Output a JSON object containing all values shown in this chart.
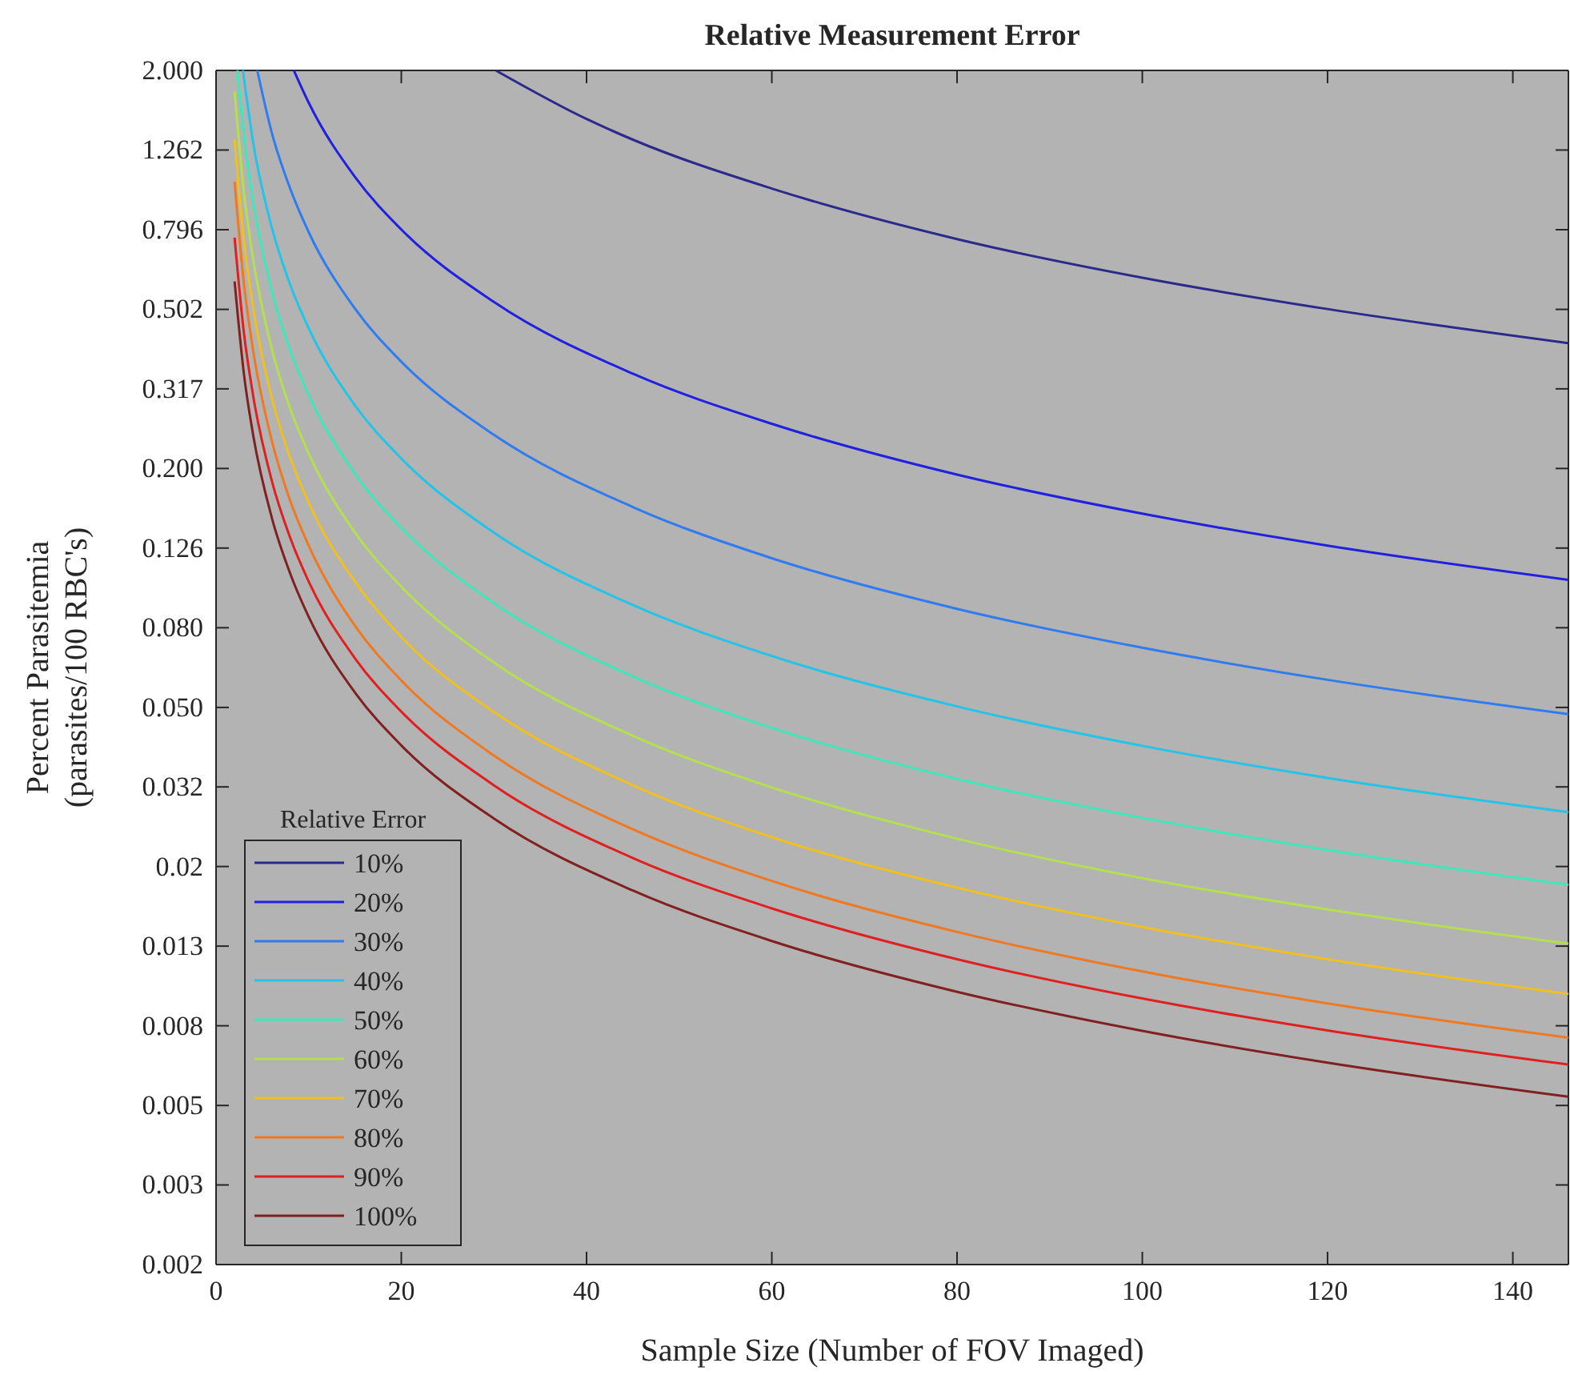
{
  "chart_data": {
    "type": "line",
    "title": "Relative Measurement Error",
    "xlabel": "Sample Size (Number of FOV Imaged)",
    "ylabel": "Percent Parasitemia\n(parasites/100 RBC's)",
    "legend_title": "Relative Error",
    "legend": "bottom left",
    "grid": false,
    "log": "y",
    "marker": "none",
    "line_style": "solid",
    "xlim": [
      0,
      146
    ],
    "xticks": [
      0,
      20,
      40,
      60,
      80,
      100,
      120,
      140
    ],
    "ylim": [
      0.002,
      2
    ],
    "yticks": [
      {
        "value": 0.002,
        "label": "0.002"
      },
      {
        "value": 0.00317,
        "label": "0.003"
      },
      {
        "value": 0.00502,
        "label": "0.005"
      },
      {
        "value": 0.00796,
        "label": "0.008"
      },
      {
        "value": 0.01262,
        "label": "0.013"
      },
      {
        "value": 0.02,
        "label": "0.02"
      },
      {
        "value": 0.0317,
        "label": "0.032"
      },
      {
        "value": 0.0502,
        "label": "0.050"
      },
      {
        "value": 0.0796,
        "label": "0.080"
      },
      {
        "value": 0.1262,
        "label": "0.126"
      },
      {
        "value": 0.2,
        "label": "0.200"
      },
      {
        "value": 0.317,
        "label": "0.317"
      },
      {
        "value": 0.502,
        "label": "0.502"
      },
      {
        "value": 0.796,
        "label": "0.796"
      },
      {
        "value": 1.262,
        "label": "1.262"
      },
      {
        "value": 2,
        "label": "2.000"
      }
    ],
    "series": [
      {
        "name": "10%",
        "color": "#2a2a8c",
        "x": [
          30.2,
          40,
          45,
          60,
          80,
          100,
          120,
          146
        ],
        "values": [
          2.0,
          1.51,
          1.34,
          1.01,
          0.754,
          0.603,
          0.503,
          0.413
        ]
      },
      {
        "name": "20%",
        "color": "#2020e0",
        "x": [
          8.4,
          10,
          15,
          20,
          30,
          45,
          60,
          80,
          100,
          120,
          146
        ],
        "values": [
          2.0,
          1.66,
          1.08,
          0.797,
          0.524,
          0.346,
          0.259,
          0.193,
          0.154,
          0.128,
          0.105
        ]
      },
      {
        "name": "30%",
        "color": "#2f7bf0",
        "x": [
          4.45,
          6,
          8,
          10,
          15,
          20,
          30,
          45,
          60,
          80,
          100,
          120,
          146
        ],
        "values": [
          2.0,
          1.4,
          1.01,
          0.785,
          0.504,
          0.371,
          0.243,
          0.16,
          0.119,
          0.0888,
          0.0709,
          0.0589,
          0.0483
        ]
      },
      {
        "name": "40%",
        "color": "#22c4e8",
        "x": [
          2.9,
          4,
          6,
          8,
          10,
          15,
          20,
          30,
          45,
          60,
          80,
          100,
          120,
          146
        ],
        "values": [
          2.0,
          1.32,
          0.809,
          0.579,
          0.45,
          0.288,
          0.212,
          0.138,
          0.0908,
          0.0676,
          0.0505,
          0.0402,
          0.0334,
          0.0274
        ]
      },
      {
        "name": "50%",
        "color": "#3ee8b8",
        "x": [
          2.3,
          3,
          4,
          6,
          8,
          10,
          15,
          20,
          30,
          45,
          60,
          80,
          100,
          120,
          146
        ],
        "values": [
          2.0,
          1.38,
          0.938,
          0.561,
          0.397,
          0.306,
          0.194,
          0.142,
          0.0918,
          0.0601,
          0.0446,
          0.0332,
          0.0265,
          0.022,
          0.018
        ]
      },
      {
        "name": "60%",
        "color": "#b4e050",
        "x": [
          2,
          3,
          4,
          6,
          8,
          10,
          15,
          20,
          30,
          45,
          60,
          80,
          100,
          120,
          146
        ],
        "values": [
          1.77,
          0.991,
          0.673,
          0.401,
          0.283,
          0.218,
          0.138,
          0.101,
          0.0651,
          0.0426,
          0.0316,
          0.0235,
          0.0187,
          0.0156,
          0.0128
        ]
      },
      {
        "name": "70%",
        "color": "#f0c020",
        "x": [
          2,
          3,
          4,
          6,
          8,
          10,
          15,
          20,
          30,
          45,
          60,
          80,
          100,
          120,
          146
        ],
        "values": [
          1.34,
          0.749,
          0.508,
          0.302,
          0.213,
          0.164,
          0.104,
          0.0755,
          0.0489,
          0.032,
          0.0237,
          0.0177,
          0.0141,
          0.0117,
          0.00957
        ]
      },
      {
        "name": "80%",
        "color": "#f07820",
        "x": [
          2,
          3,
          4,
          6,
          8,
          10,
          15,
          20,
          30,
          45,
          60,
          80,
          100,
          120,
          146
        ],
        "values": [
          1.05,
          0.586,
          0.396,
          0.236,
          0.166,
          0.128,
          0.0805,
          0.0587,
          0.038,
          0.0248,
          0.0184,
          0.0137,
          0.0109,
          0.00906,
          0.00743
        ]
      },
      {
        "name": "90%",
        "color": "#e02020",
        "x": [
          2,
          3,
          4,
          6,
          8,
          10,
          15,
          20,
          30,
          45,
          60,
          80,
          100,
          120,
          146
        ],
        "values": [
          0.76,
          0.44,
          0.305,
          0.187,
          0.134,
          0.104,
          0.0667,
          0.049,
          0.032,
          0.021,
          0.0157,
          0.0117,
          0.00932,
          0.00775,
          0.00636
        ]
      },
      {
        "name": "100%",
        "color": "#802020",
        "x": [
          2,
          3,
          4,
          6,
          8,
          10,
          15,
          20,
          30,
          45,
          60,
          80,
          100,
          120,
          146
        ],
        "values": [
          0.59,
          0.347,
          0.243,
          0.151,
          0.109,
          0.0848,
          0.0547,
          0.0403,
          0.0264,
          0.0174,
          0.013,
          0.00969,
          0.00773,
          0.00643,
          0.00528
        ]
      }
    ]
  }
}
